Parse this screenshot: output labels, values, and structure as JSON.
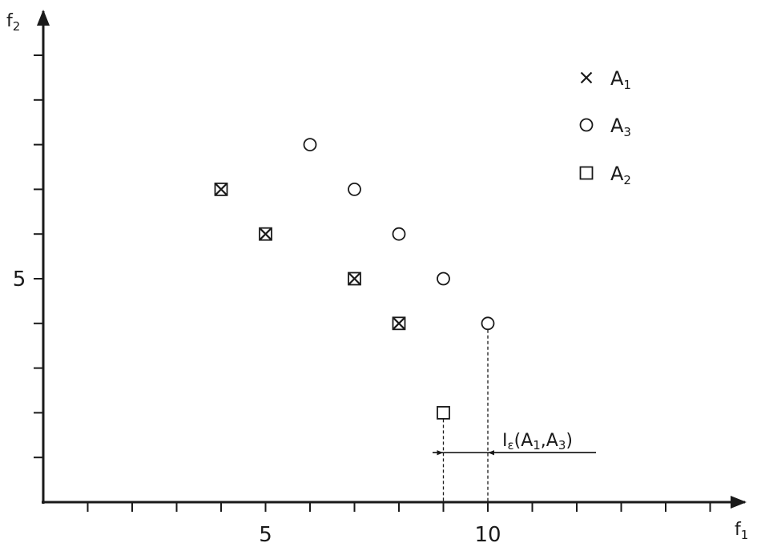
{
  "chart_data": {
    "type": "scatter",
    "xlabel": "f1",
    "ylabel": "f2",
    "xlim": [
      0,
      15.5
    ],
    "ylim": [
      0,
      10.5
    ],
    "x_ticks": [
      1,
      2,
      3,
      4,
      5,
      6,
      7,
      8,
      9,
      10,
      11,
      12,
      13,
      14,
      15
    ],
    "y_ticks": [
      1,
      2,
      3,
      4,
      5,
      6,
      7,
      8,
      9,
      10
    ],
    "x_tick_labels": [
      {
        "value": 5,
        "label": "5"
      },
      {
        "value": 10,
        "label": "10"
      }
    ],
    "y_tick_labels": [
      {
        "value": 5,
        "label": "5"
      }
    ],
    "series": [
      {
        "name": "A1",
        "marker": "cross",
        "points": [
          [
            4,
            7
          ],
          [
            5,
            6
          ],
          [
            7,
            5
          ],
          [
            8,
            4
          ]
        ]
      },
      {
        "name": "A3",
        "marker": "circle",
        "points": [
          [
            6,
            8
          ],
          [
            7,
            7
          ],
          [
            8,
            6
          ],
          [
            9,
            5
          ],
          [
            10,
            4
          ]
        ]
      },
      {
        "name": "A2",
        "marker": "square",
        "points": [
          [
            4,
            7
          ],
          [
            5,
            6
          ],
          [
            7,
            5
          ],
          [
            8,
            4
          ],
          [
            9,
            2
          ]
        ]
      }
    ],
    "legend": {
      "placement": "top-right",
      "entries": [
        {
          "main": "A",
          "sub": "1",
          "marker": "cross"
        },
        {
          "main": "A",
          "sub": "3",
          "marker": "circle"
        },
        {
          "main": "A",
          "sub": "2",
          "marker": "square"
        }
      ]
    },
    "annotation": {
      "label_main": "I",
      "label_sub": "ε",
      "label_rest": "(A",
      "label_sub2": "1",
      "label_mid": ",A",
      "label_sub3": "3",
      "label_end": ")",
      "from_x": 9,
      "to_x": 10,
      "y": 1
    }
  },
  "labels": {
    "x_main": "f",
    "x_sub": "1",
    "y_main": "f",
    "y_sub": "2"
  }
}
